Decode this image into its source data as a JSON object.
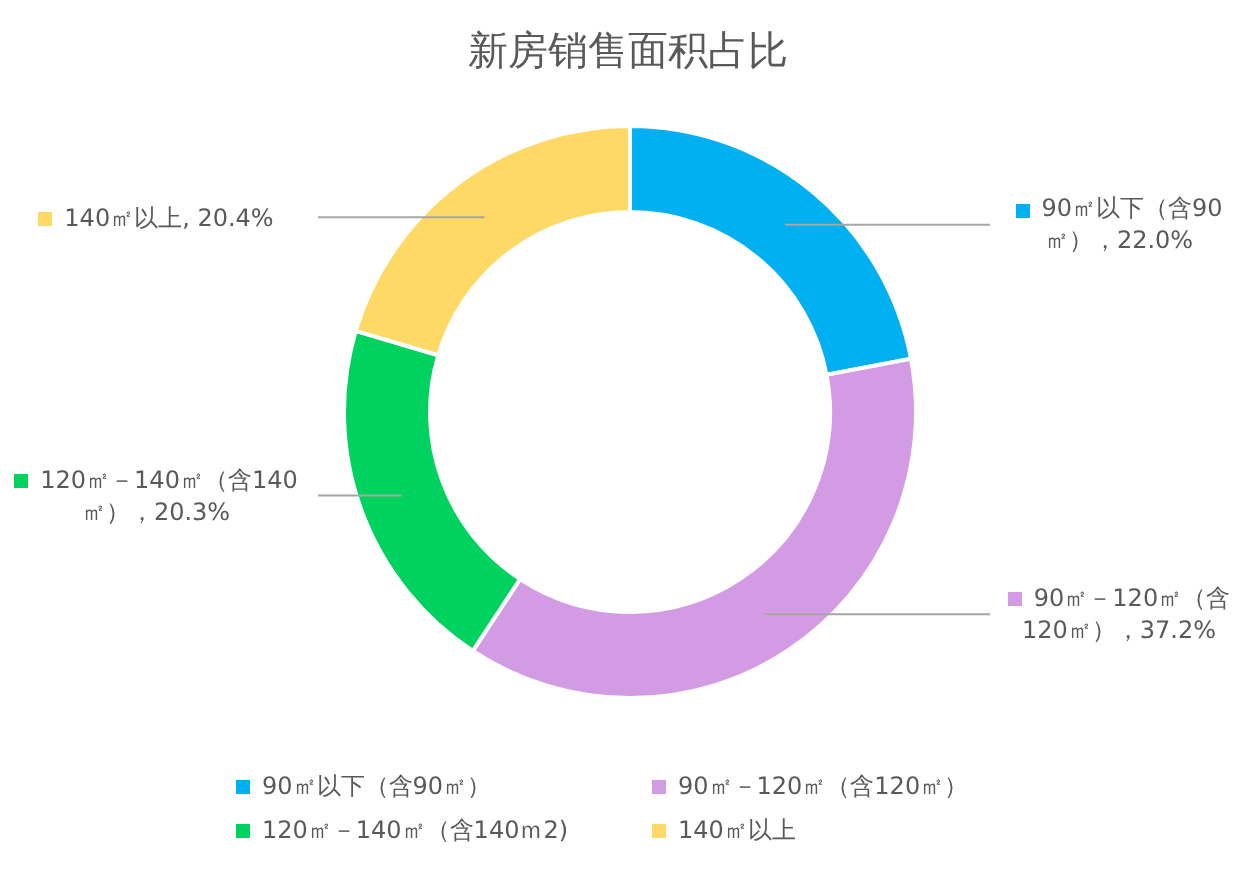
{
  "chart_data": {
    "type": "donut",
    "title": "新房销售面积占比",
    "categories": [
      "90㎡以下（含90㎡）",
      "90㎡－120㎡（含120㎡）",
      "120㎡－140㎡（含140ｍ2)",
      "140㎡以上"
    ],
    "values": [
      22.0,
      37.2,
      20.3,
      20.4
    ],
    "colors": [
      "#00b0f0",
      "#d29be3",
      "#00d25f",
      "#ffd966"
    ],
    "value_labels": [
      "90㎡以下（含90㎡），22.0%",
      "90㎡－120㎡（含120㎡），37.2%",
      "120㎡－140㎡（含140㎡），20.3%",
      "140㎡以上, 20.4%"
    ],
    "legend": "bottom"
  }
}
